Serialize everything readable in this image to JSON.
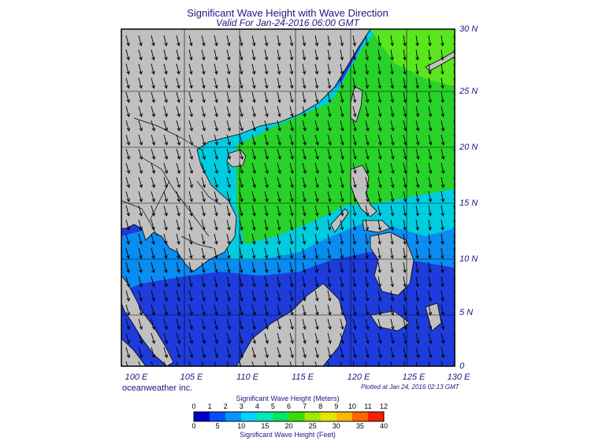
{
  "title": "Significant Wave Height with Wave Direction",
  "subtitle": "Valid For Jan-24-2016 06:00 GMT",
  "brand": "oceanweather inc.",
  "plotted": "Plotted at Jan 24, 2016 02:13 GMT",
  "lat_labels": [
    "30 N",
    "25 N",
    "20 N",
    "15 N",
    "10 N",
    "5 N",
    "0"
  ],
  "lon_labels": [
    "100 E",
    "105 E",
    "110 E",
    "115 E",
    "120 E",
    "125 E",
    "130 E"
  ],
  "colorbar": {
    "title_top": "Significant Wave Height (Meters)",
    "title_bottom": "Significant Wave Height (Feet)",
    "meters": [
      "0",
      "1",
      "2",
      "3",
      "4",
      "5",
      "6",
      "7",
      "8",
      "9",
      "10",
      "11",
      "12"
    ],
    "feet": [
      "0",
      "5",
      "10",
      "15",
      "20",
      "25",
      "30",
      "35",
      "40"
    ],
    "colors": [
      "#0000c8",
      "#0050ff",
      "#0096ff",
      "#00d2ff",
      "#00e6b4",
      "#00e664",
      "#3cdc00",
      "#a0e600",
      "#e6e600",
      "#ffb400",
      "#ff6400",
      "#ff1e00"
    ]
  },
  "colors": {
    "land": "#c0c0c0",
    "deep_blue": "#1e3cdc",
    "mid_blue": "#0a8cf0",
    "cyan": "#00d2e6",
    "green": "#28d228",
    "bright_green": "#5ae61e",
    "text": "#1a1a80"
  }
}
